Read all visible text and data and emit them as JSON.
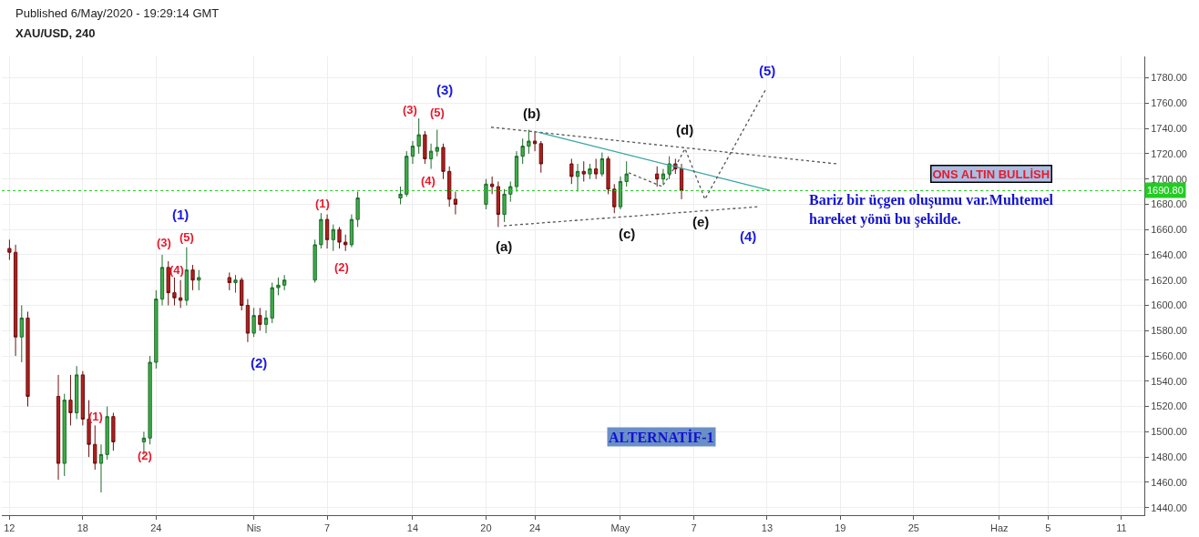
{
  "chart_data": {
    "type": "candlestick",
    "title": "Published 6/May/2020 - 19:29:14 GMT",
    "subtitle": "XAU/USD, 240",
    "x": [
      "2020-03-12T00:00",
      "2020-03-12T12:00",
      "2020-03-13T00:00",
      "2020-03-13T12:00",
      "2020-03-16T00:00",
      "2020-03-16T12:00",
      "2020-03-17T00:00",
      "2020-03-17T12:00",
      "2020-03-18T00:00",
      "2020-03-18T12:00",
      "2020-03-19T00:00",
      "2020-03-19T12:00",
      "2020-03-20T00:00",
      "2020-03-20T12:00",
      "2020-03-23T00:00",
      "2020-03-23T12:00",
      "2020-03-24T00:00",
      "2020-03-24T12:00",
      "2020-03-25T00:00",
      "2020-03-25T12:00",
      "2020-03-26T00:00",
      "2020-03-26T12:00",
      "2020-03-27T00:00",
      "2020-03-27T12:00",
      "2020-03-30T00:00",
      "2020-03-30T12:00",
      "2020-03-31T00:00",
      "2020-03-31T12:00",
      "2020-04-01T00:00",
      "2020-04-01T12:00",
      "2020-04-02T00:00",
      "2020-04-02T12:00",
      "2020-04-03T00:00",
      "2020-04-03T12:00",
      "2020-04-06T00:00",
      "2020-04-06T12:00",
      "2020-04-07T00:00",
      "2020-04-07T12:00",
      "2020-04-08T00:00",
      "2020-04-08T12:00",
      "2020-04-09T00:00",
      "2020-04-09T12:00",
      "2020-04-13T00:00",
      "2020-04-13T12:00",
      "2020-04-14T00:00",
      "2020-04-14T12:00",
      "2020-04-15T00:00",
      "2020-04-15T12:00",
      "2020-04-16T00:00",
      "2020-04-16T12:00",
      "2020-04-17T00:00",
      "2020-04-17T12:00",
      "2020-04-20T00:00",
      "2020-04-20T12:00",
      "2020-04-21T00:00",
      "2020-04-21T12:00",
      "2020-04-22T00:00",
      "2020-04-22T12:00",
      "2020-04-23T00:00",
      "2020-04-23T12:00",
      "2020-04-24T00:00",
      "2020-04-24T12:00",
      "2020-04-27T00:00",
      "2020-04-27T12:00",
      "2020-04-28T00:00",
      "2020-04-28T12:00",
      "2020-04-29T00:00",
      "2020-04-29T12:00",
      "2020-04-30T00:00",
      "2020-04-30T12:00",
      "2020-05-01T00:00",
      "2020-05-01T12:00",
      "2020-05-04T00:00",
      "2020-05-04T12:00",
      "2020-05-05T00:00",
      "2020-05-05T12:00",
      "2020-05-06T00:00"
    ],
    "ohlc": [
      [
        1645,
        1652,
        1636,
        1642
      ],
      [
        1642,
        1648,
        1560,
        1575
      ],
      [
        1575,
        1600,
        1555,
        1590
      ],
      [
        1590,
        1595,
        1520,
        1528
      ],
      [
        1528,
        1545,
        1462,
        1475
      ],
      [
        1475,
        1530,
        1465,
        1525
      ],
      [
        1525,
        1545,
        1505,
        1515
      ],
      [
        1515,
        1552,
        1510,
        1545
      ],
      [
        1545,
        1548,
        1505,
        1510
      ],
      [
        1510,
        1525,
        1480,
        1490
      ],
      [
        1490,
        1505,
        1470,
        1475
      ],
      [
        1475,
        1490,
        1452,
        1482
      ],
      [
        1482,
        1520,
        1478,
        1512
      ],
      [
        1512,
        1515,
        1485,
        1492
      ],
      [
        1492,
        1500,
        1482,
        1495
      ],
      [
        1495,
        1560,
        1490,
        1555
      ],
      [
        1555,
        1612,
        1550,
        1605
      ],
      [
        1605,
        1640,
        1600,
        1630
      ],
      [
        1630,
        1635,
        1600,
        1610
      ],
      [
        1610,
        1622,
        1600,
        1606
      ],
      [
        1606,
        1620,
        1598,
        1604
      ],
      [
        1604,
        1646,
        1600,
        1628
      ],
      [
        1628,
        1632,
        1612,
        1620
      ],
      [
        1620,
        1628,
        1612,
        1622
      ],
      [
        1622,
        1626,
        1612,
        1618
      ],
      [
        1618,
        1624,
        1610,
        1620
      ],
      [
        1620,
        1622,
        1596,
        1600
      ],
      [
        1600,
        1605,
        1571,
        1578
      ],
      [
        1578,
        1598,
        1575,
        1592
      ],
      [
        1592,
        1598,
        1580,
        1585
      ],
      [
        1585,
        1596,
        1578,
        1590
      ],
      [
        1590,
        1618,
        1586,
        1614
      ],
      [
        1614,
        1622,
        1608,
        1616
      ],
      [
        1616,
        1624,
        1612,
        1620
      ],
      [
        1620,
        1652,
        1618,
        1648
      ],
      [
        1648,
        1673,
        1645,
        1668
      ],
      [
        1668,
        1672,
        1645,
        1652
      ],
      [
        1652,
        1664,
        1643,
        1660
      ],
      [
        1660,
        1662,
        1645,
        1650
      ],
      [
        1650,
        1656,
        1643,
        1648
      ],
      [
        1648,
        1672,
        1646,
        1668
      ],
      [
        1668,
        1690,
        1662,
        1685
      ],
      [
        1685,
        1694,
        1680,
        1688
      ],
      [
        1688,
        1722,
        1686,
        1718
      ],
      [
        1718,
        1730,
        1712,
        1726
      ],
      [
        1726,
        1748,
        1720,
        1735
      ],
      [
        1735,
        1738,
        1712,
        1716
      ],
      [
        1716,
        1728,
        1708,
        1722
      ],
      [
        1722,
        1739,
        1718,
        1725
      ],
      [
        1725,
        1728,
        1700,
        1706
      ],
      [
        1706,
        1710,
        1678,
        1684
      ],
      [
        1684,
        1690,
        1672,
        1680
      ],
      [
        1680,
        1700,
        1676,
        1696
      ],
      [
        1696,
        1702,
        1688,
        1694
      ],
      [
        1694,
        1698,
        1662,
        1672
      ],
      [
        1672,
        1692,
        1666,
        1688
      ],
      [
        1688,
        1698,
        1682,
        1694
      ],
      [
        1694,
        1722,
        1690,
        1718
      ],
      [
        1718,
        1732,
        1712,
        1726
      ],
      [
        1726,
        1739,
        1720,
        1730
      ],
      [
        1730,
        1738,
        1722,
        1728
      ],
      [
        1728,
        1730,
        1705,
        1712
      ],
      [
        1712,
        1716,
        1696,
        1702
      ],
      [
        1702,
        1712,
        1690,
        1706
      ],
      [
        1706,
        1714,
        1698,
        1704
      ],
      [
        1704,
        1712,
        1700,
        1708
      ],
      [
        1708,
        1716,
        1700,
        1704
      ],
      [
        1704,
        1721,
        1702,
        1716
      ],
      [
        1716,
        1718,
        1688,
        1692
      ],
      [
        1692,
        1696,
        1673,
        1678
      ],
      [
        1678,
        1702,
        1676,
        1698
      ],
      [
        1698,
        1714,
        1694,
        1704
      ],
      [
        1704,
        1710,
        1694,
        1700
      ],
      [
        1700,
        1708,
        1696,
        1704
      ],
      [
        1704,
        1718,
        1700,
        1712
      ],
      [
        1712,
        1716,
        1704,
        1708
      ],
      [
        1708,
        1712,
        1684,
        1690.8
      ]
    ],
    "series": [
      {
        "type": "line",
        "color": "#555555",
        "line_style": "dotted",
        "x": [
          "2020-04-20T10:00",
          "2020-05-18T17:00"
        ],
        "values": [
          1741,
          1712
        ]
      },
      {
        "type": "line",
        "color": "#555555",
        "line_style": "dotted",
        "x": [
          "2020-04-21T11:00",
          "2020-05-12T05:00"
        ],
        "values": [
          1663,
          1678
        ]
      },
      {
        "type": "line",
        "color": "#3aa6a0",
        "line_style": "solid",
        "x": [
          "2020-04-24T07:00",
          "2020-05-13T05:00"
        ],
        "values": [
          1737,
          1691
        ]
      },
      {
        "type": "line",
        "color": "#555555",
        "line_style": "dotted",
        "x": [
          "2020-05-01T16:00",
          "2020-05-04T10:00",
          "2020-05-05T12:00",
          "2020-05-06T07:00",
          "2020-05-07T22:00",
          "2020-05-12T23:00"
        ],
        "values": [
          1705,
          1694,
          1710,
          1724,
          1684,
          1772
        ]
      }
    ],
    "xlim": [
      "2020-03-11T09:00",
      "2020-06-12T21:00"
    ],
    "xticks": [
      {
        "value": "2020-03-12",
        "label": "12"
      },
      {
        "value": "2020-03-18",
        "label": "18"
      },
      {
        "value": "2020-03-24",
        "label": "24"
      },
      {
        "value": "2020-04-01",
        "label": "Nis"
      },
      {
        "value": "2020-04-07",
        "label": "7"
      },
      {
        "value": "2020-04-14",
        "label": "14"
      },
      {
        "value": "2020-04-20",
        "label": "20"
      },
      {
        "value": "2020-04-24",
        "label": "24"
      },
      {
        "value": "2020-05-01",
        "label": "May"
      },
      {
        "value": "2020-05-07",
        "label": "7"
      },
      {
        "value": "2020-05-13",
        "label": "13"
      },
      {
        "value": "2020-05-19",
        "label": "19"
      },
      {
        "value": "2020-05-25",
        "label": "25"
      },
      {
        "value": "2020-06-01",
        "label": "Haz"
      },
      {
        "value": "2020-06-05",
        "label": "5"
      },
      {
        "value": "2020-06-11",
        "label": "11"
      }
    ],
    "ylim": [
      1434,
      1797
    ],
    "yticks": [
      {
        "value": 1440,
        "label": "1440.00"
      },
      {
        "value": 1460,
        "label": "1460.00"
      },
      {
        "value": 1480,
        "label": "1480.00"
      },
      {
        "value": 1500,
        "label": "1500.00"
      },
      {
        "value": 1520,
        "label": "1520.00"
      },
      {
        "value": 1540,
        "label": "1540.00"
      },
      {
        "value": 1560,
        "label": "1560.00"
      },
      {
        "value": 1580,
        "label": "1580.00"
      },
      {
        "value": 1600,
        "label": "1600.00"
      },
      {
        "value": 1620,
        "label": "1620.00"
      },
      {
        "value": 1640,
        "label": "1640.00"
      },
      {
        "value": 1660,
        "label": "1660.00"
      },
      {
        "value": 1680,
        "label": "1680.00"
      },
      {
        "value": 1700,
        "label": "1700.00"
      },
      {
        "value": 1720,
        "label": "1720.00"
      },
      {
        "value": 1740,
        "label": "1740.00"
      },
      {
        "value": 1760,
        "label": "1760.00"
      },
      {
        "value": 1780,
        "label": "1780.00"
      }
    ],
    "ref_lines": [
      {
        "axis": "y",
        "value": 1690.8,
        "label": "1690.80",
        "color": "#22cc22",
        "line_style": "dotted"
      }
    ],
    "annotations": [
      "(1)",
      "(2)",
      "(3)",
      "(4)",
      "(5)",
      "(1)",
      "(2)",
      "(3)",
      "(4)",
      "(5)",
      "(1)",
      "(2)",
      "(3)",
      "(4)",
      "(5)",
      "(a)",
      "(b)",
      "(c)",
      "(d)",
      "(e)",
      "ONS ALTIN BULLİSH",
      "Bariz bir üçgen oluşumu var.Muhtemel\nhareket yönü bu şekilde.",
      "ALTERNATİF-1"
    ],
    "grid": true
  }
}
